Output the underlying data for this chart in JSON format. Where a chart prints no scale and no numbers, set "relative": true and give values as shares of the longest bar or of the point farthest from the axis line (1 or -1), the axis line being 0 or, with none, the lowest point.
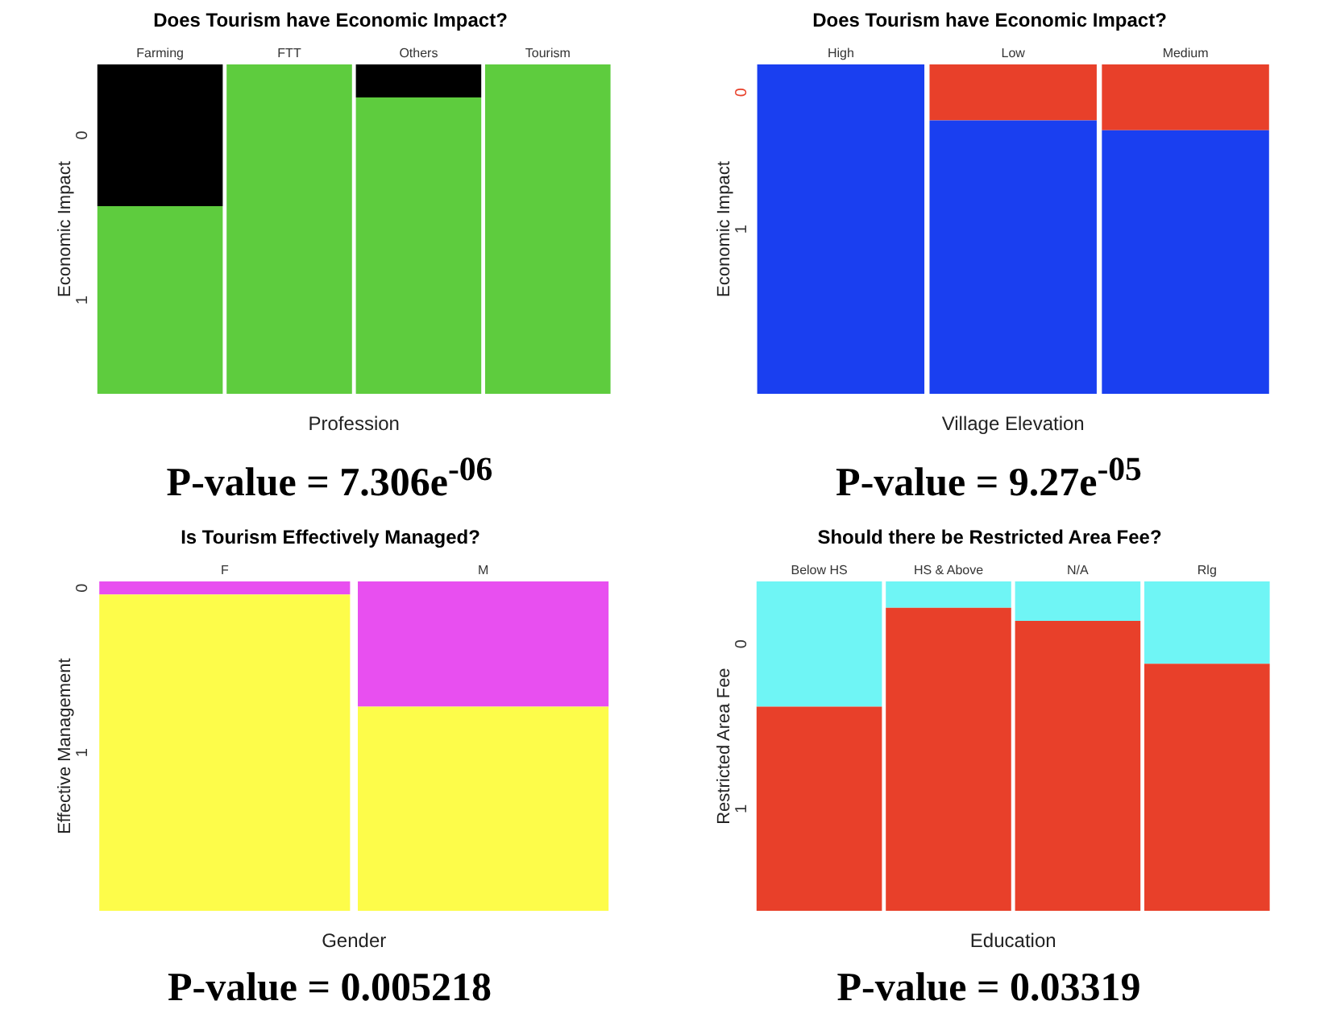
{
  "chart_data": [
    {
      "type": "bar",
      "title": "Does Tourism have Economic Impact?",
      "xlabel": "Profession",
      "ylabel": "Economic Impact",
      "categories": [
        "Farming",
        "FTT",
        "Others",
        "Tourism"
      ],
      "stacked": true,
      "relative": true,
      "tick_labels": "x",
      "series": [
        {
          "name": "1",
          "color": "#5ecc3e",
          "values": [
            0.57,
            1,
            0.9,
            1
          ]
        },
        {
          "name": "0",
          "color": "#000000",
          "values": [
            0.43,
            0,
            0.1,
            0
          ]
        }
      ],
      "annotations": [
        "P-value = 7.306e$^{-06}$"
      ]
    },
    {
      "type": "bar",
      "title": "Does Tourism have Economic Impact?",
      "xlabel": "Village Elevation",
      "ylabel": "Economic Impact",
      "categories": [
        "High",
        "Low",
        "Medium"
      ],
      "stacked": true,
      "relative": true,
      "tick_labels": "x",
      "series": [
        {
          "name": "1",
          "color": "#1a3ff0",
          "values": [
            1,
            0.83,
            0.8
          ]
        },
        {
          "name": "0",
          "color": "#e8402a",
          "values": [
            0,
            0.17,
            0.2
          ]
        }
      ],
      "annotations": [
        "P-value = 9.27e$^{-05}$"
      ]
    },
    {
      "type": "bar",
      "title": "Is Tourism Effectively Managed?",
      "xlabel": "Gender",
      "ylabel": "Effective Management",
      "categories": [
        "F",
        "M"
      ],
      "stacked": true,
      "relative": true,
      "tick_labels": "x",
      "series": [
        {
          "name": "1",
          "color": "#fdfc4a",
          "values": [
            0.96,
            0.62
          ]
        },
        {
          "name": "0",
          "color": "#e84ff0",
          "values": [
            0.04,
            0.38
          ]
        }
      ],
      "annotations": [
        "P-value = 0.005218"
      ]
    },
    {
      "type": "bar",
      "title": "Should there be Restricted Area Fee?",
      "xlabel": "Education",
      "ylabel": "Restricted Area Fee",
      "categories": [
        "Below HS",
        "HS & Above",
        "N/A",
        "Rlg"
      ],
      "stacked": true,
      "relative": true,
      "tick_labels": "x",
      "series": [
        {
          "name": "1",
          "color": "#e8402a",
          "values": [
            0.62,
            0.92,
            0.88,
            0.75
          ]
        },
        {
          "name": "0",
          "color": "#6ff5f5",
          "values": [
            0.38,
            0.08,
            0.12,
            0.25
          ]
        }
      ],
      "annotations": [
        "P-value = 0.03319"
      ]
    }
  ]
}
